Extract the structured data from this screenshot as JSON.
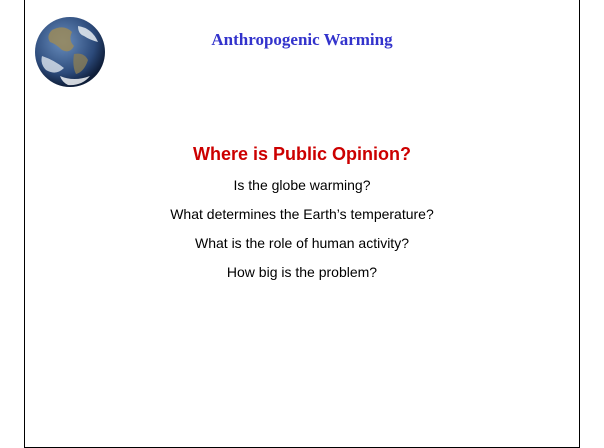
{
  "header": {
    "title": "Anthropogenic Warming"
  },
  "body": {
    "heading": "Where is Public Opinion?",
    "items": [
      "Is the globe warming?",
      "What determines the Earth’s temperature?",
      "What is the role of human activity?",
      "How big is the problem?"
    ]
  }
}
